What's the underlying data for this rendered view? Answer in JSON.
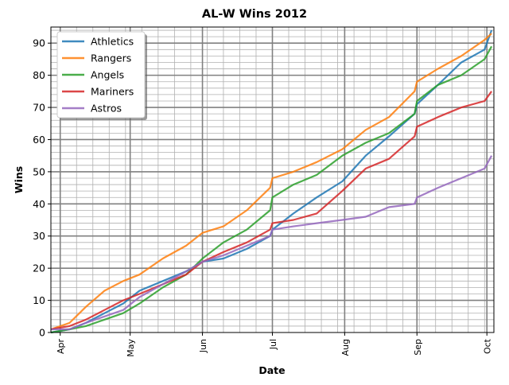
{
  "chart_data": {
    "type": "line",
    "title": "AL-W Wins 2012",
    "xlabel": "Date",
    "ylabel": "Wins",
    "x_range": [
      "2012-03-28",
      "2012-10-04"
    ],
    "ylim": [
      0,
      95
    ],
    "y_ticks": [
      0,
      10,
      20,
      30,
      40,
      50,
      60,
      70,
      80,
      90
    ],
    "x_ticks": [
      {
        "date": "2012-04-01",
        "label": "Apr"
      },
      {
        "date": "2012-05-01",
        "label": "May"
      },
      {
        "date": "2012-06-01",
        "label": "Jun"
      },
      {
        "date": "2012-07-01",
        "label": "Jul"
      },
      {
        "date": "2012-08-01",
        "label": "Aug"
      },
      {
        "date": "2012-09-01",
        "label": "Sep"
      },
      {
        "date": "2012-10-01",
        "label": "Oct"
      }
    ],
    "grid": true,
    "legend_position": "top-left",
    "series": [
      {
        "name": "Athletics",
        "color": "#1f77b4",
        "points": [
          [
            "2012-03-28",
            0
          ],
          [
            "2012-04-05",
            1
          ],
          [
            "2012-04-12",
            3
          ],
          [
            "2012-04-20",
            6
          ],
          [
            "2012-04-28",
            9
          ],
          [
            "2012-05-05",
            13
          ],
          [
            "2012-05-15",
            16
          ],
          [
            "2012-05-25",
            19
          ],
          [
            "2012-06-01",
            22
          ],
          [
            "2012-06-10",
            23
          ],
          [
            "2012-06-20",
            26
          ],
          [
            "2012-06-30",
            30
          ],
          [
            "2012-07-01",
            32
          ],
          [
            "2012-07-10",
            37
          ],
          [
            "2012-07-20",
            42
          ],
          [
            "2012-07-31",
            47
          ],
          [
            "2012-08-10",
            55
          ],
          [
            "2012-08-20",
            61
          ],
          [
            "2012-08-31",
            68
          ],
          [
            "2012-09-01",
            71
          ],
          [
            "2012-09-10",
            77
          ],
          [
            "2012-09-20",
            84
          ],
          [
            "2012-09-30",
            88
          ],
          [
            "2012-10-03",
            94
          ]
        ]
      },
      {
        "name": "Rangers",
        "color": "#ff7f0e",
        "points": [
          [
            "2012-03-28",
            1
          ],
          [
            "2012-04-05",
            3
          ],
          [
            "2012-04-12",
            8
          ],
          [
            "2012-04-20",
            13
          ],
          [
            "2012-04-28",
            16
          ],
          [
            "2012-05-05",
            18
          ],
          [
            "2012-05-15",
            23
          ],
          [
            "2012-05-25",
            27
          ],
          [
            "2012-06-01",
            31
          ],
          [
            "2012-06-10",
            33
          ],
          [
            "2012-06-20",
            38
          ],
          [
            "2012-06-30",
            45
          ],
          [
            "2012-07-01",
            48
          ],
          [
            "2012-07-10",
            50
          ],
          [
            "2012-07-20",
            53
          ],
          [
            "2012-07-31",
            57
          ],
          [
            "2012-08-10",
            63
          ],
          [
            "2012-08-20",
            67
          ],
          [
            "2012-08-31",
            75
          ],
          [
            "2012-09-01",
            78
          ],
          [
            "2012-09-10",
            82
          ],
          [
            "2012-09-20",
            86
          ],
          [
            "2012-09-30",
            91
          ],
          [
            "2012-10-03",
            93
          ]
        ]
      },
      {
        "name": "Angels",
        "color": "#2ca02c",
        "points": [
          [
            "2012-03-28",
            0
          ],
          [
            "2012-04-05",
            1
          ],
          [
            "2012-04-12",
            2
          ],
          [
            "2012-04-20",
            4
          ],
          [
            "2012-04-28",
            6
          ],
          [
            "2012-05-05",
            9
          ],
          [
            "2012-05-15",
            14
          ],
          [
            "2012-05-25",
            18
          ],
          [
            "2012-06-01",
            23
          ],
          [
            "2012-06-10",
            28
          ],
          [
            "2012-06-20",
            32
          ],
          [
            "2012-06-30",
            38
          ],
          [
            "2012-07-01",
            42
          ],
          [
            "2012-07-10",
            46
          ],
          [
            "2012-07-20",
            49
          ],
          [
            "2012-07-31",
            55
          ],
          [
            "2012-08-10",
            59
          ],
          [
            "2012-08-20",
            62
          ],
          [
            "2012-08-31",
            68
          ],
          [
            "2012-09-01",
            72
          ],
          [
            "2012-09-10",
            77
          ],
          [
            "2012-09-20",
            80
          ],
          [
            "2012-09-30",
            85
          ],
          [
            "2012-10-03",
            89
          ]
        ]
      },
      {
        "name": "Mariners",
        "color": "#d62728",
        "points": [
          [
            "2012-03-28",
            1
          ],
          [
            "2012-04-05",
            2
          ],
          [
            "2012-04-12",
            4
          ],
          [
            "2012-04-20",
            7
          ],
          [
            "2012-04-28",
            10
          ],
          [
            "2012-05-05",
            12
          ],
          [
            "2012-05-15",
            15
          ],
          [
            "2012-05-25",
            18
          ],
          [
            "2012-06-01",
            22
          ],
          [
            "2012-06-10",
            25
          ],
          [
            "2012-06-20",
            28
          ],
          [
            "2012-06-30",
            32
          ],
          [
            "2012-07-01",
            34
          ],
          [
            "2012-07-10",
            35
          ],
          [
            "2012-07-20",
            37
          ],
          [
            "2012-07-31",
            44
          ],
          [
            "2012-08-10",
            51
          ],
          [
            "2012-08-20",
            54
          ],
          [
            "2012-08-31",
            61
          ],
          [
            "2012-09-01",
            64
          ],
          [
            "2012-09-10",
            67
          ],
          [
            "2012-09-20",
            70
          ],
          [
            "2012-09-30",
            72
          ],
          [
            "2012-10-03",
            75
          ]
        ]
      },
      {
        "name": "Astros",
        "color": "#9467bd",
        "points": [
          [
            "2012-03-28",
            1
          ],
          [
            "2012-04-05",
            1
          ],
          [
            "2012-04-12",
            3
          ],
          [
            "2012-04-20",
            5
          ],
          [
            "2012-04-28",
            7
          ],
          [
            "2012-05-05",
            11
          ],
          [
            "2012-05-15",
            15
          ],
          [
            "2012-05-25",
            19
          ],
          [
            "2012-06-01",
            22
          ],
          [
            "2012-06-10",
            24
          ],
          [
            "2012-06-20",
            27
          ],
          [
            "2012-06-30",
            30
          ],
          [
            "2012-07-01",
            32
          ],
          [
            "2012-07-10",
            33
          ],
          [
            "2012-07-20",
            34
          ],
          [
            "2012-07-31",
            35
          ],
          [
            "2012-08-10",
            36
          ],
          [
            "2012-08-20",
            39
          ],
          [
            "2012-08-31",
            40
          ],
          [
            "2012-09-01",
            42
          ],
          [
            "2012-09-10",
            45
          ],
          [
            "2012-09-20",
            48
          ],
          [
            "2012-09-30",
            51
          ],
          [
            "2012-10-03",
            55
          ]
        ]
      }
    ]
  }
}
